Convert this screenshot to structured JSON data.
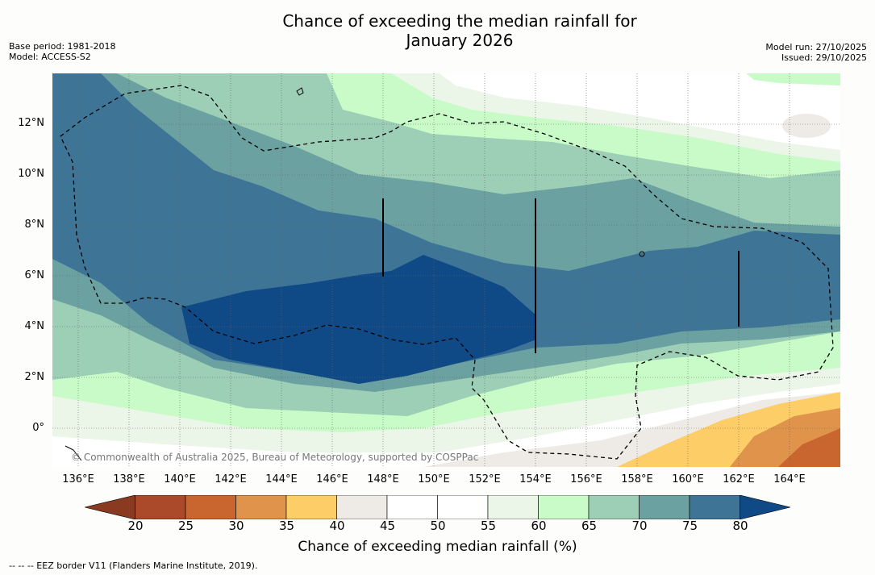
{
  "title_line1": "Chance of exceeding the median rainfall for",
  "title_line2": "January 2026",
  "meta_left": {
    "base_period": "Base period: 1981-2018",
    "model": "Model: ACCESS-S2"
  },
  "meta_right": {
    "model_run": "Model run: 27/10/2025",
    "issued": "Issued: 29/10/2025"
  },
  "lat_labels": [
    "12°N",
    "10°N",
    "8°N",
    "6°N",
    "4°N",
    "2°N",
    "0°"
  ],
  "lon_labels": [
    "136°E",
    "138°E",
    "140°E",
    "142°E",
    "144°E",
    "146°E",
    "148°E",
    "150°E",
    "152°E",
    "154°E",
    "156°E",
    "158°E",
    "160°E",
    "162°E",
    "164°E"
  ],
  "copyright": "© Commonwealth of Australia 2025, Bureau of Meteorology, supported by COSPPac",
  "colorbar": {
    "ticks": [
      "20",
      "25",
      "30",
      "35",
      "40",
      "45",
      "50",
      "55",
      "60",
      "65",
      "70",
      "75",
      "80"
    ],
    "colors": [
      "#8b3a22",
      "#ab4a2a",
      "#c9652f",
      "#e0934a",
      "#fdcd68",
      "#eeebe6",
      "#ffffff",
      "#ffffff",
      "#ebf5e8",
      "#c8fbc8",
      "#9ccfb5",
      "#6ba1a1",
      "#3e7597",
      "#104a86"
    ],
    "label": "Chance of exceeding median rainfall (%)"
  },
  "footer": "--  --  -- EEZ border V11 (Flanders Marine Institute, 2019)."
}
